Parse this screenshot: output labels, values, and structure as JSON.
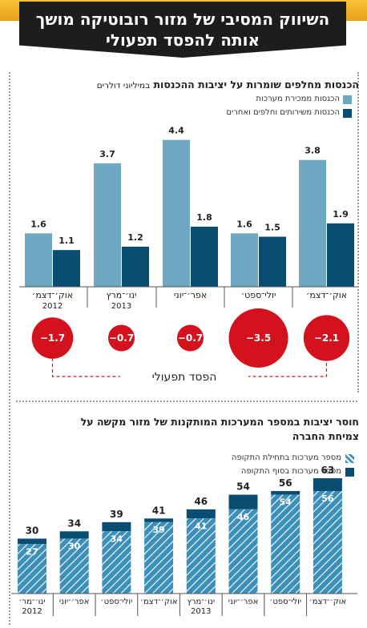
{
  "headline": {
    "line1": "השיווק המסיבי של מזור רובוטיקה מושך",
    "line2": "אותה להפסד תפעולי"
  },
  "colors": {
    "light_blue": "#6ea7c2",
    "dark_blue": "#0a4d73",
    "loss_red": "#d4121e",
    "banner": "#1d1d1d",
    "top_band": "#f1b32a"
  },
  "chart_data": [
    {
      "type": "bar",
      "title": "הכנסות מחלפים שומרות על יציבות ההכנסות",
      "title_unit": "במיליוני דולרים",
      "categories": [
        "אוק׳־דצמ׳ 2012",
        "ינו׳־מרץ 2013",
        "אפר׳־יוני",
        "יולי־ספט׳",
        "אוק׳־דצמ׳"
      ],
      "category_lines": [
        [
          "אוק׳־דצמ׳",
          "2012"
        ],
        [
          "ינו׳־מרץ",
          "2013"
        ],
        [
          "אפר׳־יוני",
          ""
        ],
        [
          "יולי־ספט׳",
          ""
        ],
        [
          "אוק׳־דצמ׳",
          ""
        ]
      ],
      "series": [
        {
          "name": "הכנסות ממכירת מערכות",
          "values": [
            1.6,
            3.7,
            4.4,
            1.6,
            3.8
          ]
        },
        {
          "name": "הכנסות משירותים וחלפים ואחרים",
          "values": [
            1.1,
            1.2,
            1.8,
            1.5,
            1.9
          ]
        }
      ],
      "value_labels": [
        [
          "1.6",
          "3.7",
          "4.4",
          "1.6",
          "3.8"
        ],
        [
          "1.1",
          "1.2",
          "1.8",
          "1.5",
          "1.9"
        ]
      ],
      "ylim": [
        0,
        4.8
      ],
      "operating_loss": {
        "label": "הפסד תפעולי",
        "values": [
          -1.7,
          -0.7,
          -0.7,
          -3.5,
          -2.1
        ],
        "value_labels": [
          "−1.7",
          "−0.7",
          "−0.7",
          "−3.5",
          "−2.1"
        ]
      }
    },
    {
      "type": "bar",
      "title_line1": "חוסר יציבות במספר המערכות המותקנות של מזור מקשה על",
      "title_line2": "צמיחת החברה",
      "categories": [
        "ינו׳־מר׳ 2012",
        "אפר׳־יוני",
        "יולי־ספט׳",
        "אוק׳־דצמ׳",
        "ינו׳־מרץ 2013",
        "אפר׳־יוני",
        "יולי־ספט׳",
        "אוק׳־דצמ׳"
      ],
      "category_lines": [
        [
          "ינו׳־מר׳",
          "2012"
        ],
        [
          "אפר׳־יוני",
          ""
        ],
        [
          "יולי־ספט׳",
          ""
        ],
        [
          "אוק׳־דצמ׳",
          ""
        ],
        [
          "ינו׳־מרץ",
          "2013"
        ],
        [
          "אפר׳־יוני",
          ""
        ],
        [
          "יולי־ספט׳",
          ""
        ],
        [
          "אוק׳־דצמ׳",
          ""
        ]
      ],
      "series": [
        {
          "name": "מספר מערכות בתחילת התקופה",
          "values": [
            27,
            30,
            34,
            39,
            41,
            46,
            54,
            56
          ]
        },
        {
          "name": "מספר מערכות בסוף התקופה",
          "values": [
            30,
            34,
            39,
            41,
            46,
            54,
            56,
            63
          ]
        }
      ],
      "start_labels": [
        "27",
        "30",
        "34",
        "39",
        "41",
        "46",
        "54",
        "56"
      ],
      "end_labels": [
        "30",
        "34",
        "39",
        "41",
        "46",
        "54",
        "56",
        "63"
      ],
      "ylim": [
        0,
        65
      ]
    }
  ]
}
